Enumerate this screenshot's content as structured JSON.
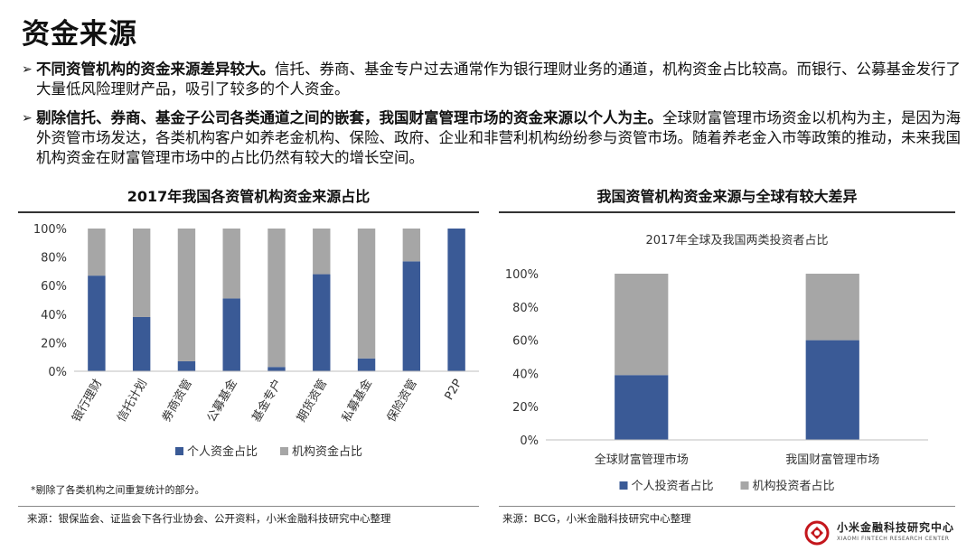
{
  "page": {
    "title": "资金来源",
    "bullets": [
      {
        "bold": "不同资管机构的资金来源差异较大。",
        "text": "信托、券商、基金专户过去通常作为银行理财业务的通道，机构资金占比较高。而银行、公募基金发行了大量低风险理财产品，吸引了较多的个人资金。"
      },
      {
        "bold": "剔除信托、券商、基金子公司各类通道之间的嵌套，我国财富管理市场的资金来源以个人为主。",
        "text": "全球财富管理市场资金以机构为主，是因为海外资管市场发达，各类机构客户如养老金机构、保险、政府、企业和非营利机构纷纷参与资管市场。随着养老金入市等政策的推动，未来我国机构资金在财富管理市场中的占比仍然有较大的增长空间。"
      }
    ],
    "bullet_marker": "➢",
    "left_panel_title": "2017年我国各资管机构资金来源占比",
    "right_panel_title": "我国资管机构资金来源与全球有较大差异",
    "left_note": "*剔除了各类机构之间重复统计的部分。",
    "left_source": "来源：银保监会、证监会下各行业协会、公开资料，小米金融科技研究中心整理",
    "right_source": "来源：BCG，小米金融科技研究中心整理",
    "logo_main": "小米金融科技研究中心",
    "logo_sub": "XIAOMI FINTECH RESEARCH CENTER"
  },
  "chart_data": [
    {
      "type": "bar",
      "stacked": true,
      "title": "2017年我国各资管机构资金来源占比",
      "categories": [
        "银行理财",
        "信托计划",
        "券商资管",
        "公募基金",
        "基金专户",
        "期货资管",
        "私募基金",
        "保险资管",
        "P2P"
      ],
      "series": [
        {
          "name": "个人资金占比",
          "color": "#3a5a96",
          "values": [
            67,
            38,
            7,
            51,
            3,
            68,
            9,
            77,
            100
          ]
        },
        {
          "name": "机构资金占比",
          "color": "#a6a6a6",
          "values": [
            33,
            62,
            93,
            49,
            97,
            32,
            91,
            23,
            0
          ]
        }
      ],
      "ylim": [
        0,
        100
      ],
      "yticks": [
        "0%",
        "20%",
        "40%",
        "60%",
        "80%",
        "100%"
      ],
      "legend": "bottom"
    },
    {
      "type": "bar",
      "stacked": true,
      "title": "2017年全球及我国两类投资者占比",
      "categories": [
        "全球财富管理市场",
        "我国财富管理市场"
      ],
      "series": [
        {
          "name": "个人投资者占比",
          "color": "#3a5a96",
          "values": [
            39,
            60
          ]
        },
        {
          "name": "机构投资者占比",
          "color": "#a6a6a6",
          "values": [
            61,
            40
          ]
        }
      ],
      "ylim": [
        0,
        100
      ],
      "yticks": [
        "0%",
        "20%",
        "40%",
        "60%",
        "80%",
        "100%"
      ],
      "legend": "bottom"
    }
  ]
}
